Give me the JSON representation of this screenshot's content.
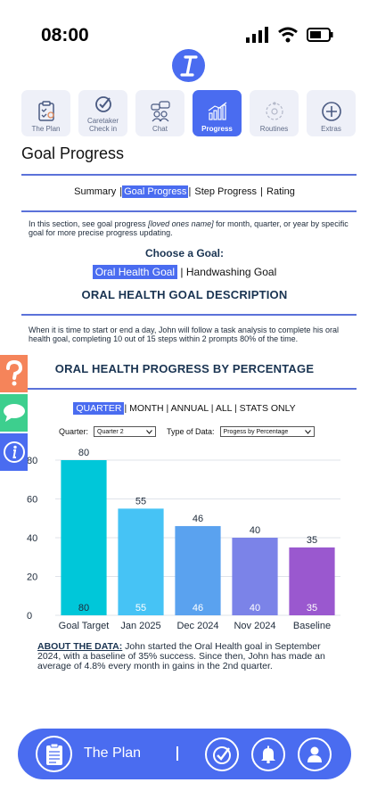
{
  "status": {
    "time": "08:00"
  },
  "tabs": [
    {
      "label": "The Plan",
      "icon": "clipboard-icon",
      "active": false
    },
    {
      "label": "Caretaker Check in",
      "icon": "check-circle-icon",
      "active": false
    },
    {
      "label": "Chat",
      "icon": "chat-people-icon",
      "active": false
    },
    {
      "label": "Progress",
      "icon": "bar-chart-icon",
      "active": true
    },
    {
      "label": "Routines",
      "icon": "routine-cycle-icon",
      "active": false
    },
    {
      "label": "Extras",
      "icon": "plus-circle-icon",
      "active": false
    }
  ],
  "page": {
    "title": "Goal Progress"
  },
  "subnav": {
    "items": [
      "Summary",
      "Goal Progress",
      "Step Progress",
      "Rating"
    ],
    "selected": "Goal Progress"
  },
  "intro": {
    "before": "In this section, see goal progress ",
    "italic": "[loved ones name]",
    "after": " for month, quarter, or year by specific goal for more precise progress updating."
  },
  "choose": {
    "label": "Choose a Goal:",
    "goals": [
      "Oral Health Goal",
      "Handwashing Goal"
    ],
    "selected": "Oral Health Goal"
  },
  "description": {
    "title": "ORAL HEALTH GOAL DESCRIPTION",
    "text": "When it is time to start or end a day, John will follow a task analysis to complete his oral health goal, completing 10 out of 15 steps within 2 prompts 80% of the time."
  },
  "progress": {
    "title": "ORAL HEALTH PROGRESS BY PERCENTAGE",
    "periods": [
      "QUARTER",
      "MONTH",
      "ANNUAL",
      "ALL",
      "STATS ONLY"
    ],
    "selected_period": "QUARTER",
    "quarter_label": "Quarter:",
    "quarter_value": "Quarter 2",
    "type_label": "Type of Data:",
    "type_value": "Progess by Percentage"
  },
  "chart_data": {
    "type": "bar",
    "categories": [
      "Goal Target",
      "Jan 2025",
      "Dec 2024",
      "Nov 2024",
      "Baseline"
    ],
    "values": [
      80,
      55,
      46,
      40,
      35
    ],
    "colors": [
      "#00c7d9",
      "#46c3f5",
      "#5aa2ef",
      "#7b83e8",
      "#9a58cf"
    ],
    "yticks": [
      0,
      20,
      40,
      60,
      80
    ],
    "ylim": [
      0,
      80
    ],
    "grid": true
  },
  "about": {
    "heading": "ABOUT THE DATA:",
    "text": " John started the Oral Health goal in September 2024, with a baseline of 35% success.  Since then, John has made an average of 4.8% every month in gains in the 2nd quarter."
  },
  "side_buttons": [
    {
      "icon": "question-icon",
      "color": "#f5845a"
    },
    {
      "icon": "speech-bubble-icon",
      "color": "#3dcf8e"
    },
    {
      "icon": "info-icon",
      "color": "#4a6cf0"
    }
  ],
  "bottom_bar": {
    "title": "The Plan",
    "icons": [
      "clipboard-icon",
      "check-circle-icon",
      "bell-icon",
      "user-icon"
    ]
  }
}
